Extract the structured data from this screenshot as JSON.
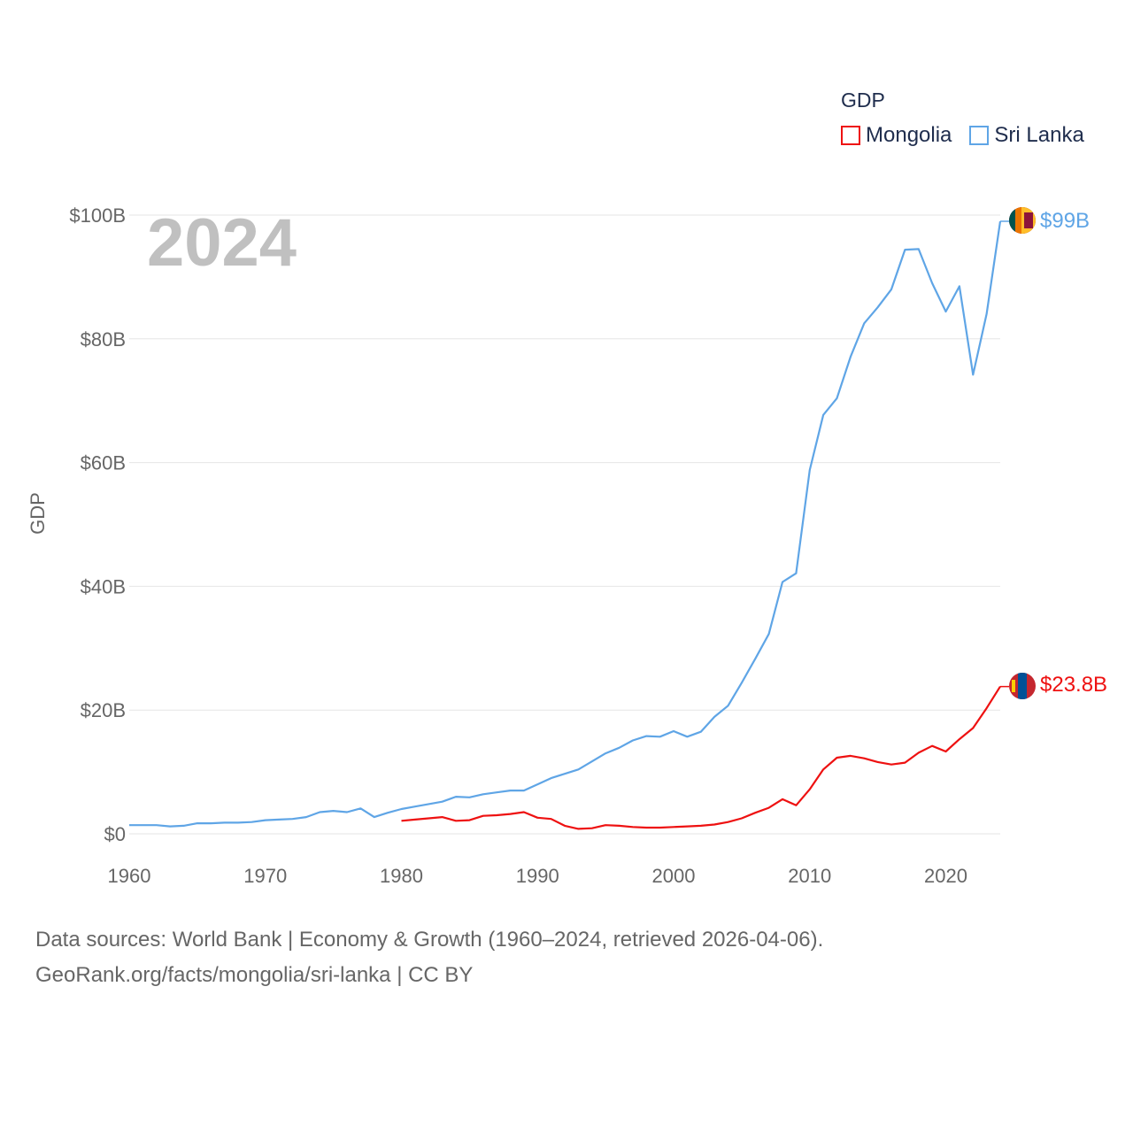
{
  "legend": {
    "title": "GDP",
    "items": [
      {
        "label": "Mongolia",
        "color": "#ee1111"
      },
      {
        "label": "Sri Lanka",
        "color": "#5fa5e6"
      }
    ]
  },
  "year_label": "2024",
  "source": {
    "line1": "Data sources: World Bank | Economy & Growth (1960–2024, retrieved 2026-04-06).",
    "line2": "GeoRank.org/facts/mongolia/sri-lanka | CC BY"
  },
  "chart_data": {
    "type": "line",
    "title": "",
    "xlabel": "",
    "ylabel": "GDP",
    "xlim": [
      1960,
      2024
    ],
    "ylim": [
      0,
      100
    ],
    "y_unit": "billions USD",
    "x_ticks": [
      1960,
      1970,
      1980,
      1990,
      2000,
      2010,
      2020
    ],
    "x_tick_labels": [
      "1960",
      "1970",
      "1980",
      "1990",
      "2000",
      "2010",
      "2020"
    ],
    "y_ticks": [
      0,
      20,
      40,
      60,
      80,
      100
    ],
    "y_tick_labels": [
      "$0",
      "$20B",
      "$40B",
      "$60B",
      "$80B",
      "$100B"
    ],
    "grid": true,
    "legend_position": "top-right",
    "series": [
      {
        "name": "Sri Lanka",
        "color": "#5fa5e6",
        "end_label": "$99B",
        "x": [
          1960,
          1961,
          1962,
          1963,
          1964,
          1965,
          1966,
          1967,
          1968,
          1969,
          1970,
          1971,
          1972,
          1973,
          1974,
          1975,
          1976,
          1977,
          1978,
          1979,
          1980,
          1981,
          1982,
          1983,
          1984,
          1985,
          1986,
          1987,
          1988,
          1989,
          1990,
          1991,
          1992,
          1993,
          1994,
          1995,
          1996,
          1997,
          1998,
          1999,
          2000,
          2001,
          2002,
          2003,
          2004,
          2005,
          2006,
          2007,
          2008,
          2009,
          2010,
          2011,
          2012,
          2013,
          2014,
          2015,
          2016,
          2017,
          2018,
          2019,
          2020,
          2021,
          2022,
          2023,
          2024
        ],
        "values": [
          1.4,
          1.4,
          1.4,
          1.2,
          1.3,
          1.7,
          1.7,
          1.8,
          1.8,
          1.9,
          2.2,
          2.3,
          2.4,
          2.7,
          3.5,
          3.7,
          3.5,
          4.1,
          2.7,
          3.4,
          4.0,
          4.4,
          4.8,
          5.2,
          6.0,
          5.9,
          6.4,
          6.7,
          7.0,
          7.0,
          8.0,
          9.0,
          9.7,
          10.4,
          11.7,
          13.0,
          13.9,
          15.1,
          15.8,
          15.7,
          16.6,
          15.7,
          16.5,
          18.9,
          20.7,
          24.4,
          28.3,
          32.3,
          40.7,
          42.1,
          58.8,
          67.7,
          70.4,
          77.1,
          82.5,
          85.1,
          88.0,
          94.4,
          94.5,
          89.0,
          84.4,
          88.5,
          74.2,
          84.0,
          99.0
        ]
      },
      {
        "name": "Mongolia",
        "color": "#ee1111",
        "end_label": "$23.8B",
        "x": [
          1980,
          1981,
          1982,
          1983,
          1984,
          1985,
          1986,
          1987,
          1988,
          1989,
          1990,
          1991,
          1992,
          1993,
          1994,
          1995,
          1996,
          1997,
          1998,
          1999,
          2000,
          2001,
          2002,
          2003,
          2004,
          2005,
          2006,
          2007,
          2008,
          2009,
          2010,
          2011,
          2012,
          2013,
          2014,
          2015,
          2016,
          2017,
          2018,
          2019,
          2020,
          2021,
          2022,
          2023,
          2024
        ],
        "values": [
          2.1,
          2.3,
          2.5,
          2.7,
          2.1,
          2.2,
          2.9,
          3.0,
          3.2,
          3.5,
          2.6,
          2.4,
          1.3,
          0.8,
          0.9,
          1.4,
          1.3,
          1.1,
          1.0,
          1.0,
          1.1,
          1.2,
          1.3,
          1.5,
          1.9,
          2.5,
          3.4,
          4.2,
          5.6,
          4.6,
          7.2,
          10.4,
          12.3,
          12.6,
          12.2,
          11.6,
          11.2,
          11.5,
          13.1,
          14.2,
          13.3,
          15.3,
          17.1,
          20.3,
          23.8
        ]
      }
    ]
  }
}
